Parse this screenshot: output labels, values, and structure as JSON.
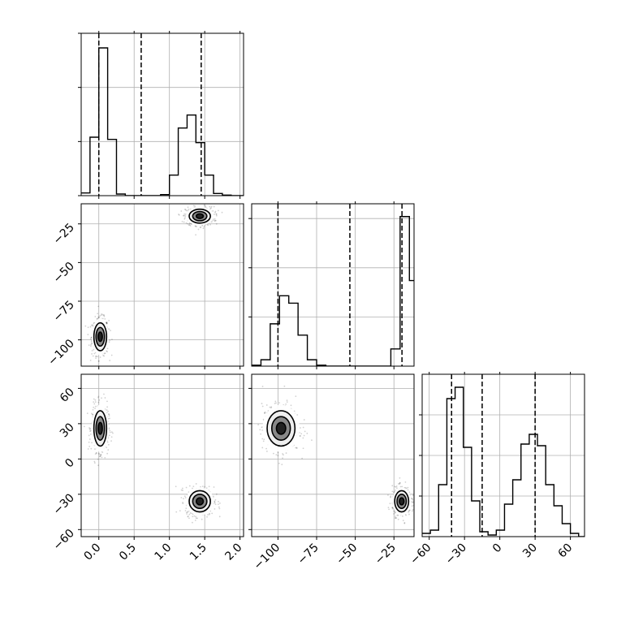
{
  "chart_data": {
    "type": "corner",
    "title": "",
    "style": {
      "line_color": "#000000",
      "grid_color": "#b0b0b0",
      "contour_fill_dark": "#222222",
      "contour_fill_mid": "#888888",
      "contour_fill_light": "#eeeeee",
      "sample_color": "#000000",
      "quantile_line": "dashed"
    },
    "parameters": [
      {
        "label": "",
        "range": [
          -0.25,
          2.05
        ],
        "ticks": [
          0.0,
          0.5,
          1.0,
          1.5,
          2.0
        ],
        "tick_labels": [
          "0.0",
          "0.5",
          "1.0",
          "1.5",
          "2.0"
        ],
        "quantiles": [
          0.0,
          0.6,
          1.45
        ],
        "histogram": {
          "bin_edges": [
            -0.25,
            -0.125,
            0.0,
            0.125,
            0.25,
            0.375,
            0.5,
            0.625,
            0.75,
            0.875,
            1.0,
            1.125,
            1.25,
            1.375,
            1.5,
            1.625,
            1.75,
            1.875,
            2.0,
            2.05
          ],
          "counts": [
            0.05,
            1.08,
            2.73,
            1.04,
            0.03,
            0.0,
            0.0,
            0.0,
            0.0,
            0.02,
            0.38,
            1.25,
            1.49,
            0.98,
            0.38,
            0.04,
            0.01,
            0.0,
            0.0
          ]
        },
        "y_range": [
          0,
          3.0
        ],
        "hidden_ticks": [
          1,
          2,
          3
        ]
      },
      {
        "label": "",
        "range": [
          -117,
          -12
        ],
        "ticks": [
          -100,
          -75,
          -50,
          -25
        ],
        "tick_labels": [
          "−100",
          "−75",
          "−50",
          "−25"
        ],
        "quantiles": [
          -100,
          -53.5,
          -19.8
        ],
        "histogram": {
          "bin_edges": [
            -117,
            -111,
            -105,
            -99,
            -93,
            -87,
            -81,
            -75,
            -69,
            -63,
            -57,
            -51,
            -45,
            -39,
            -33,
            -27,
            -21,
            -15,
            -12
          ],
          "counts": [
            0.02,
            0.13,
            0.86,
            1.43,
            1.28,
            0.63,
            0.13,
            0.02,
            0.0,
            0.0,
            0.0,
            0.0,
            0.0,
            0.0,
            0.0,
            0.35,
            3.04,
            1.74
          ]
        },
        "y_range": [
          0,
          3.3
        ],
        "hidden_ticks": [
          1,
          2,
          3
        ]
      },
      {
        "label": "",
        "range": [
          -66,
          72
        ],
        "ticks": [
          -60,
          -30,
          0,
          30,
          60
        ],
        "tick_labels": [
          "−60",
          "−30",
          "0",
          "30",
          "60"
        ],
        "quantiles": [
          -41,
          -15,
          30
        ],
        "histogram": {
          "bin_edges": [
            -66,
            -59,
            -52,
            -45,
            -38,
            -31,
            -24,
            -17,
            -10,
            -3,
            4,
            11,
            18,
            25,
            32,
            39,
            46,
            53,
            60,
            67,
            72
          ],
          "counts": [
            0.02,
            0.04,
            0.32,
            0.85,
            0.92,
            0.55,
            0.22,
            0.03,
            0.01,
            0.04,
            0.2,
            0.35,
            0.57,
            0.63,
            0.56,
            0.32,
            0.19,
            0.08,
            0.02,
            0.0
          ]
        },
        "y_range": [
          0,
          1.0
        ],
        "hidden_ticks": [
          0.25,
          0.5,
          0.75
        ]
      }
    ],
    "modes": [
      {
        "center": [
          0.02,
          -98,
          26
        ],
        "sd": [
          0.06,
          6,
          10
        ]
      },
      {
        "center": [
          1.43,
          -20,
          -36
        ],
        "sd": [
          0.1,
          3,
          6
        ]
      }
    ]
  }
}
